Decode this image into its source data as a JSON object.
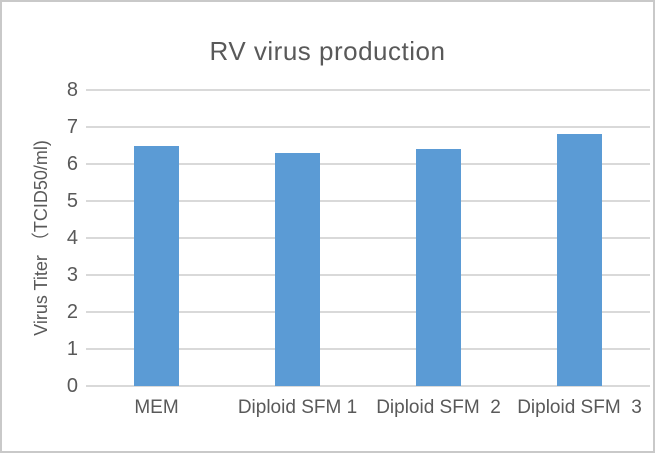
{
  "chart_data": {
    "type": "bar",
    "title": "RV virus production",
    "categories": [
      "MEM",
      "Diploid SFM 1",
      "Diploid SFM  2",
      "Diploid SFM  3"
    ],
    "values": [
      6.5,
      6.3,
      6.4,
      6.8
    ],
    "xlabel": "",
    "ylabel": "Virus Titer （TCID50/ml)",
    "ylim": [
      0,
      8
    ],
    "ytick_step": 1,
    "yticks": [
      0,
      1,
      2,
      3,
      4,
      5,
      6,
      7,
      8
    ],
    "grid": true,
    "legend": false,
    "bar_color": "#5b9bd5",
    "gridline_color": "#d9d9d9",
    "text_color": "#595959",
    "frame_border_color": "#c9c9c9",
    "background_color": "#ffffff"
  }
}
